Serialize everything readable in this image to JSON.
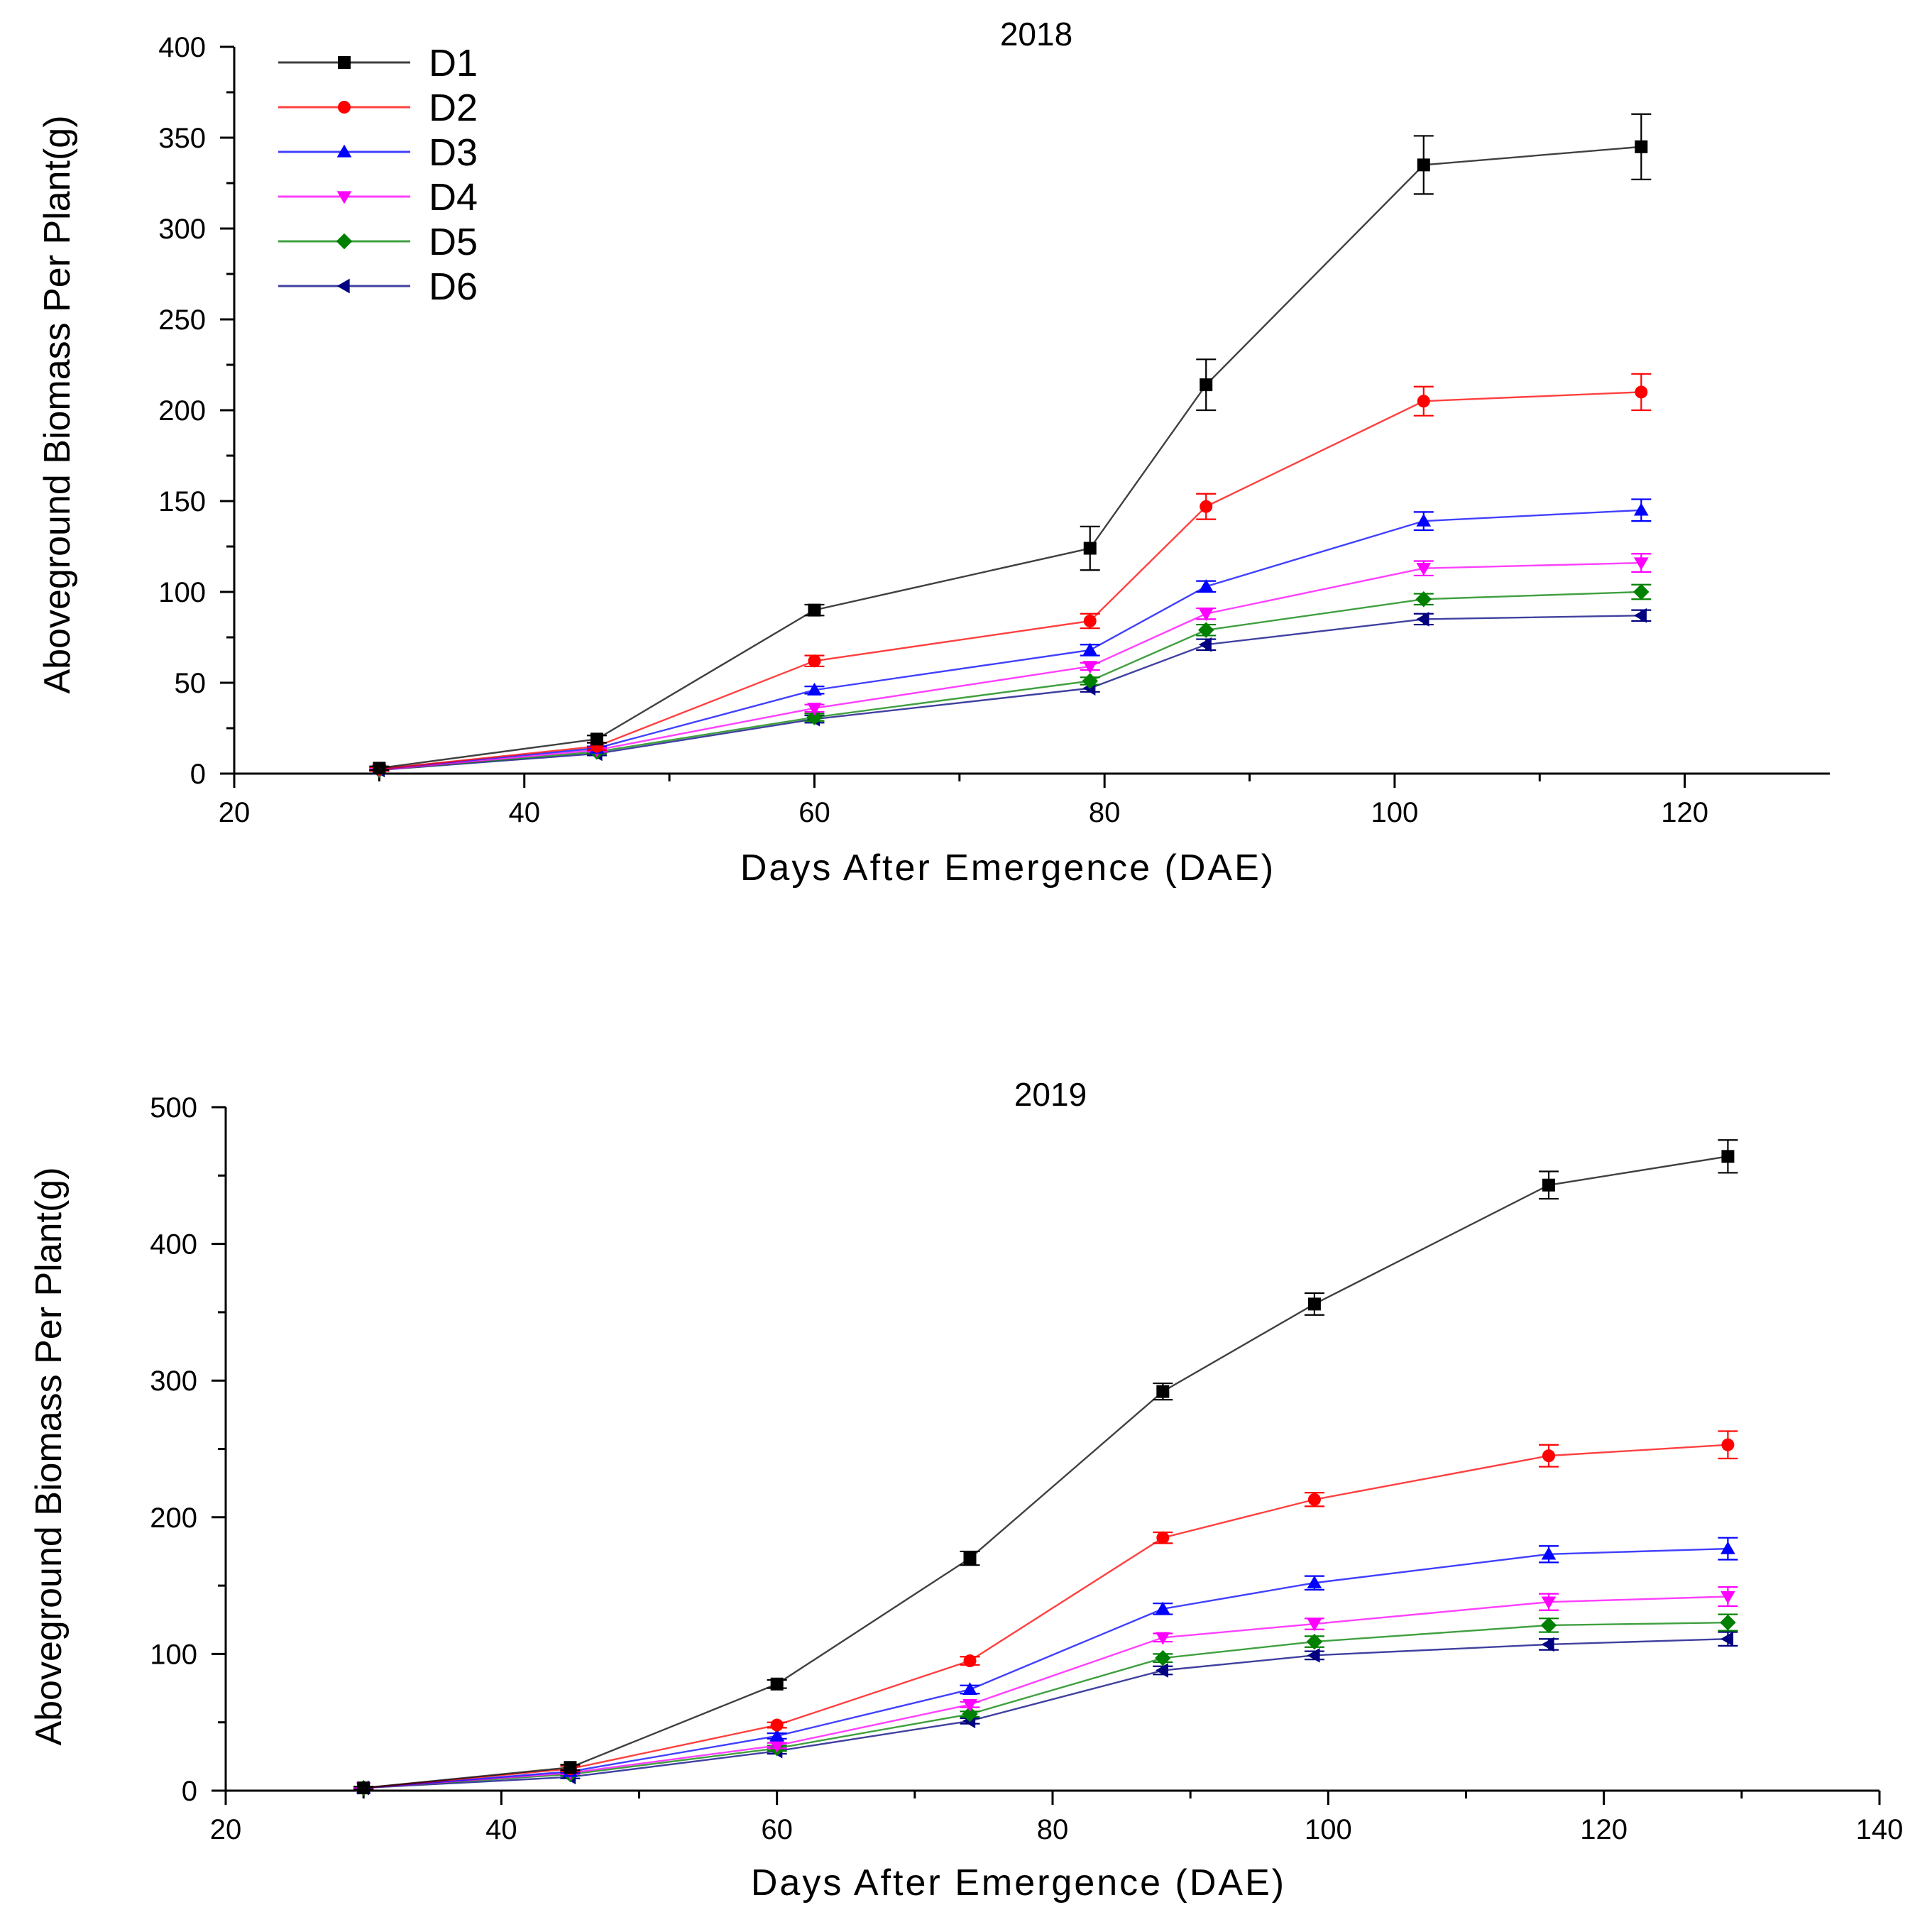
{
  "chart_data": [
    {
      "type": "line",
      "title": "2018",
      "xlabel": "Days After Emergence (DAE)",
      "ylabel": "Aboveground Biomass Per Plant(g)",
      "xlim": [
        20,
        130
      ],
      "ylim": [
        0,
        400
      ],
      "xticks": [
        20,
        40,
        60,
        80,
        100,
        120
      ],
      "yticks": [
        0,
        50,
        100,
        150,
        200,
        250,
        300,
        350,
        400
      ],
      "legend": "top-left",
      "x": [
        30,
        45,
        60,
        79,
        87,
        102,
        117
      ],
      "series": [
        {
          "name": "D1",
          "color": "#000000",
          "marker": "square",
          "values": [
            3,
            19,
            90,
            124,
            214,
            335,
            345
          ],
          "errors": [
            1,
            2,
            3,
            12,
            14,
            16,
            18
          ]
        },
        {
          "name": "D2",
          "color": "#ff0000",
          "marker": "circle",
          "values": [
            2.5,
            15,
            62,
            84,
            147,
            205,
            210
          ],
          "errors": [
            1,
            2,
            3,
            4,
            7,
            8,
            10
          ]
        },
        {
          "name": "D3",
          "color": "#0000ff",
          "marker": "triangle-up",
          "values": [
            2.5,
            14,
            46,
            68,
            103,
            139,
            145
          ],
          "errors": [
            1,
            1,
            2,
            3,
            3,
            5,
            6
          ]
        },
        {
          "name": "D4",
          "color": "#ff00ff",
          "marker": "triangle-down",
          "values": [
            2,
            13,
            36,
            59,
            88,
            113,
            116
          ],
          "errors": [
            0.5,
            1,
            2,
            2,
            3,
            4,
            5
          ]
        },
        {
          "name": "D5",
          "color": "#008000",
          "marker": "diamond",
          "values": [
            2,
            12,
            31,
            51,
            79,
            96,
            100
          ],
          "errors": [
            0.5,
            1,
            2,
            2,
            3,
            3,
            4
          ]
        },
        {
          "name": "D6",
          "color": "#000080",
          "marker": "triangle-left",
          "values": [
            2,
            11,
            30,
            47,
            71,
            85,
            87
          ],
          "errors": [
            0.5,
            1,
            2,
            2,
            3,
            3,
            3
          ]
        }
      ]
    },
    {
      "type": "line",
      "title": "2019",
      "xlabel": "Days After Emergence (DAE)",
      "ylabel": "Aboveground Biomass Per Plant(g)",
      "xlim": [
        20,
        140
      ],
      "ylim": [
        0,
        500
      ],
      "xticks": [
        20,
        40,
        60,
        80,
        100,
        120,
        140
      ],
      "yticks": [
        0,
        100,
        200,
        300,
        400,
        500
      ],
      "x": [
        30,
        45,
        60,
        74,
        88,
        99,
        116,
        129
      ],
      "series": [
        {
          "name": "D1",
          "color": "#000000",
          "marker": "square",
          "values": [
            2,
            17,
            78,
            170,
            292,
            356,
            443,
            464
          ],
          "errors": [
            1,
            2,
            3,
            5,
            6,
            8,
            10,
            12
          ]
        },
        {
          "name": "D2",
          "color": "#ff0000",
          "marker": "circle",
          "values": [
            2,
            16,
            48,
            95,
            185,
            213,
            245,
            253
          ],
          "errors": [
            1,
            2,
            2,
            3,
            4,
            5,
            8,
            10
          ]
        },
        {
          "name": "D3",
          "color": "#0000ff",
          "marker": "triangle-up",
          "values": [
            2,
            14,
            40,
            74,
            133,
            152,
            173,
            177
          ],
          "errors": [
            1,
            1,
            2,
            3,
            4,
            5,
            6,
            8
          ]
        },
        {
          "name": "D4",
          "color": "#ff00ff",
          "marker": "triangle-down",
          "values": [
            2,
            13,
            33,
            63,
            112,
            122,
            138,
            142
          ],
          "errors": [
            0.5,
            1,
            2,
            2,
            3,
            4,
            6,
            7
          ]
        },
        {
          "name": "D5",
          "color": "#008000",
          "marker": "diamond",
          "values": [
            2,
            12,
            31,
            56,
            97,
            109,
            121,
            123
          ],
          "errors": [
            0.5,
            1,
            2,
            2,
            3,
            4,
            5,
            6
          ]
        },
        {
          "name": "D6",
          "color": "#000080",
          "marker": "triangle-left",
          "values": [
            2,
            10,
            29,
            51,
            88,
            99,
            107,
            111
          ],
          "errors": [
            0.5,
            1,
            2,
            2,
            3,
            3,
            4,
            5
          ]
        }
      ]
    }
  ]
}
